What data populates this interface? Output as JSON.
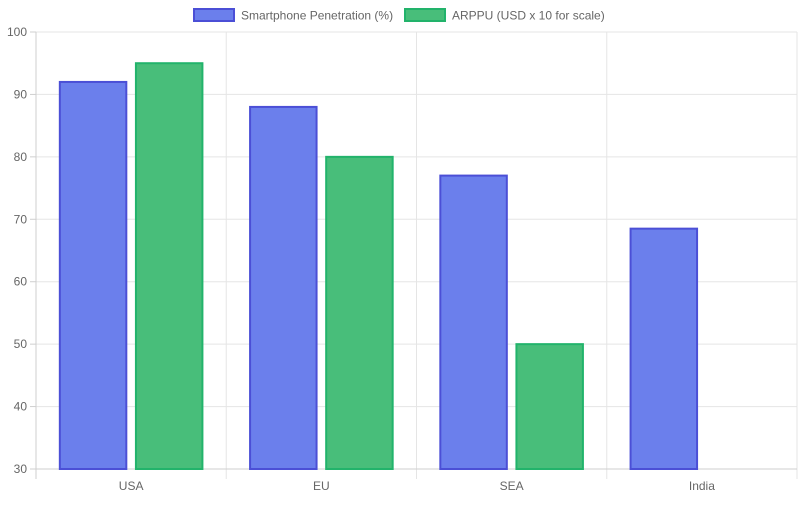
{
  "chart_data": {
    "type": "bar",
    "title": "",
    "xlabel": "",
    "ylabel": "",
    "categories": [
      "USA",
      "EU",
      "SEA",
      "India"
    ],
    "ylim": [
      30,
      100
    ],
    "yticks": [
      30,
      40,
      50,
      60,
      70,
      80,
      90,
      100
    ],
    "grid": true,
    "legend_position": "top-center",
    "series": [
      {
        "name": "Smartphone Penetration (%)",
        "values": [
          92,
          88,
          77,
          68.5
        ],
        "fill": "#6b7fec",
        "stroke": "#4b4fd6"
      },
      {
        "name": "ARPPU (USD x 10 for scale)",
        "values": [
          95,
          80,
          50,
          null
        ],
        "fill": "#48be7a",
        "stroke": "#22b36b"
      }
    ]
  }
}
